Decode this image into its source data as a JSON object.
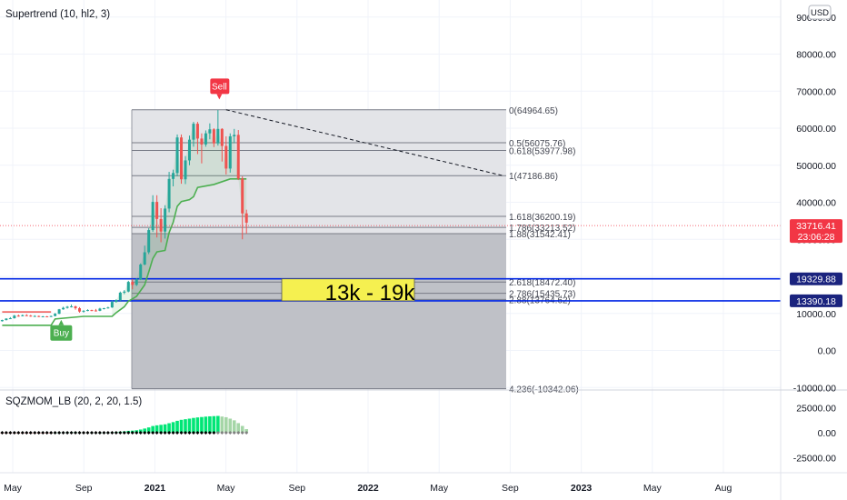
{
  "indicator_main": "Supertrend (10, hl2, 3)",
  "indicator_sub": "SQZMOM_LB (20, 2, 20, 1.5)",
  "currency_label": "USD",
  "price_axis": {
    "labels": [
      "90000.00",
      "80000.00",
      "70000.00",
      "60000.00",
      "50000.00",
      "40000.00",
      "30000.00",
      "20000.00",
      "10000.00",
      "0.00",
      "-10000.00"
    ]
  },
  "price_tags": [
    {
      "value": 33716.41,
      "label": "33716.41",
      "sublabel": "23:06:28",
      "color": "#f23645"
    },
    {
      "value": 19329.88,
      "label": "19329.88",
      "color": "#1a237e"
    },
    {
      "value": 13390.18,
      "label": "13390.18",
      "color": "#1a237e"
    }
  ],
  "sub_axis": {
    "labels": [
      "25000.00",
      "0.00",
      "-25000.00"
    ]
  },
  "time_axis": {
    "labels": [
      {
        "t": 0,
        "label": "May",
        "bold": false
      },
      {
        "t": 4,
        "label": "Sep",
        "bold": false
      },
      {
        "t": 8,
        "label": "2021",
        "bold": true
      },
      {
        "t": 12,
        "label": "May",
        "bold": false
      },
      {
        "t": 16,
        "label": "Sep",
        "bold": false
      },
      {
        "t": 20,
        "label": "2022",
        "bold": true
      },
      {
        "t": 24,
        "label": "May",
        "bold": false
      },
      {
        "t": 28,
        "label": "Sep",
        "bold": false
      },
      {
        "t": 32,
        "label": "2023",
        "bold": true
      },
      {
        "t": 36,
        "label": "May",
        "bold": false
      },
      {
        "t": 40,
        "label": "Aug",
        "bold": false
      }
    ]
  },
  "fib_levels": [
    {
      "value": 64964.65,
      "label": "0(64964.65)"
    },
    {
      "value": 56075.76,
      "label": "0.5(56075.76)"
    },
    {
      "value": 53977.98,
      "label": "0.618(53977.98)"
    },
    {
      "value": 47186.86,
      "label": "1(47186.86)"
    },
    {
      "value": 36200.19,
      "label": "1.618(36200.19)"
    },
    {
      "value": 33213.52,
      "label": "1.786(33213.52)"
    },
    {
      "value": 31542.41,
      "label": "1.88(31542.41)"
    },
    {
      "value": 18472.4,
      "label": "2.618(18472.40)"
    },
    {
      "value": 15435.73,
      "label": "2.786(15435.73)"
    },
    {
      "value": 13764.62,
      "label": "2.88(13764.62)"
    },
    {
      "value": -10342.06,
      "label": "4.236(-10342.06)"
    }
  ],
  "annotations": {
    "sell_label": "Sell",
    "buy_label": "Buy",
    "range_box_text": "13k - 19k"
  },
  "colors": {
    "bull": "#26a69a",
    "bear": "#ef5350",
    "supertrend_up": "#4caf50",
    "line_blue": "#0026e5",
    "fib_box": "#b2b5be",
    "range_box": "#f5f050"
  },
  "chart_data": {
    "type": "candlestick",
    "x_unit": "weeks from 2020 W1",
    "ylim": [
      -12000,
      95000
    ],
    "trendline": {
      "from": {
        "week": 55,
        "price": 64964.65
      },
      "to": {
        "week": 123,
        "price": 47186.86
      }
    },
    "candles": [
      [
        0,
        7900,
        8300,
        7800,
        8200
      ],
      [
        1,
        8200,
        8700,
        8100,
        8600
      ],
      [
        2,
        8600,
        9000,
        8500,
        8700
      ],
      [
        3,
        8700,
        9600,
        8600,
        9400
      ],
      [
        4,
        9400,
        9700,
        9100,
        9300
      ],
      [
        5,
        9300,
        9700,
        9200,
        9500
      ],
      [
        6,
        9500,
        9800,
        9300,
        9400
      ],
      [
        7,
        9400,
        9600,
        9100,
        9200
      ],
      [
        8,
        9200,
        9500,
        9100,
        9300
      ],
      [
        9,
        9300,
        9400,
        9000,
        9100
      ],
      [
        10,
        9100,
        9300,
        9000,
        9200
      ],
      [
        11,
        9200,
        9300,
        9000,
        9100
      ],
      [
        12,
        9100,
        9400,
        9000,
        9300
      ],
      [
        13,
        9300,
        10100,
        9200,
        9900
      ],
      [
        14,
        9900,
        11200,
        9800,
        11100
      ],
      [
        15,
        11100,
        11800,
        11000,
        11500
      ],
      [
        16,
        11500,
        12000,
        11300,
        11800
      ],
      [
        17,
        11800,
        12400,
        11600,
        11900
      ],
      [
        18,
        11900,
        12100,
        11000,
        11400
      ],
      [
        19,
        11400,
        11700,
        10200,
        10500
      ],
      [
        20,
        10500,
        10900,
        10200,
        10700
      ],
      [
        21,
        10700,
        11100,
        10600,
        10900
      ],
      [
        22,
        10900,
        11000,
        10600,
        10800
      ],
      [
        23,
        10800,
        11200,
        10500,
        10700
      ],
      [
        24,
        10700,
        11500,
        10600,
        11300
      ],
      [
        25,
        11300,
        11500,
        11100,
        11400
      ],
      [
        26,
        11400,
        11800,
        11300,
        11600
      ],
      [
        27,
        11600,
        13500,
        11500,
        13100
      ],
      [
        28,
        13100,
        13800,
        12900,
        13600
      ],
      [
        29,
        13600,
        15900,
        13400,
        15600
      ],
      [
        30,
        15600,
        16300,
        15200,
        15900
      ],
      [
        31,
        15900,
        18800,
        15700,
        18500
      ],
      [
        32,
        18500,
        19300,
        16500,
        17700
      ],
      [
        33,
        17700,
        19500,
        17400,
        19200
      ],
      [
        34,
        19200,
        23500,
        19000,
        23200
      ],
      [
        35,
        23200,
        28300,
        23000,
        26500
      ],
      [
        36,
        26500,
        33000,
        26000,
        32500
      ],
      [
        37,
        32500,
        41900,
        32000,
        40100
      ],
      [
        38,
        40100,
        41900,
        30500,
        35500
      ],
      [
        39,
        35500,
        38400,
        29200,
        32100
      ],
      [
        40,
        32100,
        39200,
        30200,
        38300
      ],
      [
        41,
        38300,
        48200,
        37300,
        46300
      ],
      [
        42,
        46300,
        48800,
        44300,
        47900
      ],
      [
        43,
        47900,
        58300,
        47000,
        57500
      ],
      [
        44,
        57500,
        58300,
        45000,
        46200
      ],
      [
        45,
        46200,
        52500,
        44900,
        51300
      ],
      [
        46,
        51300,
        58000,
        50000,
        56900
      ],
      [
        47,
        56900,
        61700,
        55000,
        61200
      ],
      [
        48,
        61200,
        61700,
        53000,
        57200
      ],
      [
        49,
        57200,
        58600,
        50500,
        55600
      ],
      [
        50,
        55600,
        59400,
        55000,
        58600
      ],
      [
        51,
        58600,
        61300,
        57000,
        59700
      ],
      [
        52,
        59700,
        60000,
        54900,
        55900
      ],
      [
        53,
        55900,
        64900,
        55300,
        59800
      ],
      [
        54,
        59800,
        60000,
        51000,
        55200
      ],
      [
        55,
        55200,
        57800,
        47500,
        49100
      ],
      [
        56,
        49100,
        58600,
        48000,
        57800
      ],
      [
        57,
        57800,
        59800,
        56000,
        58200
      ],
      [
        58,
        58200,
        59500,
        46000,
        46400
      ],
      [
        59,
        46400,
        47000,
        30000,
        37000
      ],
      [
        60,
        37000,
        38000,
        31500,
        34500
      ]
    ],
    "supertrend": [
      [
        0,
        6800
      ],
      [
        12,
        6800
      ],
      [
        13,
        8500
      ],
      [
        20,
        9200
      ],
      [
        27,
        9200
      ],
      [
        28,
        10200
      ],
      [
        30,
        11800
      ],
      [
        31,
        13300
      ],
      [
        33,
        14600
      ],
      [
        35,
        17700
      ],
      [
        36,
        21200
      ],
      [
        37,
        24800
      ],
      [
        38,
        26600
      ],
      [
        40,
        27000
      ],
      [
        41,
        31800
      ],
      [
        42,
        34600
      ],
      [
        43,
        38900
      ],
      [
        44,
        40200
      ],
      [
        46,
        40700
      ],
      [
        47,
        41500
      ],
      [
        48,
        44000
      ],
      [
        52,
        44800
      ],
      [
        56,
        46300
      ],
      [
        60,
        46300
      ]
    ],
    "sqzmom": [
      [
        0,
        -600
      ],
      [
        1,
        -500
      ],
      [
        2,
        -400
      ],
      [
        3,
        -300
      ],
      [
        4,
        -300
      ],
      [
        5,
        -200
      ],
      [
        6,
        -200
      ],
      [
        7,
        -200
      ],
      [
        8,
        -100
      ],
      [
        9,
        -100
      ],
      [
        10,
        -100
      ],
      [
        11,
        -100
      ],
      [
        12,
        -100
      ],
      [
        13,
        100
      ],
      [
        14,
        300
      ],
      [
        15,
        400
      ],
      [
        16,
        500
      ],
      [
        17,
        600
      ],
      [
        18,
        600
      ],
      [
        19,
        500
      ],
      [
        20,
        400
      ],
      [
        21,
        300
      ],
      [
        22,
        300
      ],
      [
        23,
        200
      ],
      [
        24,
        200
      ],
      [
        25,
        200
      ],
      [
        26,
        300
      ],
      [
        27,
        600
      ],
      [
        28,
        800
      ],
      [
        29,
        1100
      ],
      [
        30,
        1400
      ],
      [
        31,
        1900
      ],
      [
        32,
        2100
      ],
      [
        33,
        2500
      ],
      [
        34,
        3200
      ],
      [
        35,
        4200
      ],
      [
        36,
        5300
      ],
      [
        37,
        6700
      ],
      [
        38,
        7400
      ],
      [
        39,
        7900
      ],
      [
        40,
        8400
      ],
      [
        41,
        9500
      ],
      [
        42,
        10600
      ],
      [
        43,
        11900
      ],
      [
        44,
        12900
      ],
      [
        45,
        13500
      ],
      [
        46,
        14100
      ],
      [
        47,
        14800
      ],
      [
        48,
        15300
      ],
      [
        49,
        15700
      ],
      [
        50,
        16100
      ],
      [
        51,
        16400
      ],
      [
        52,
        16600
      ],
      [
        53,
        16800
      ],
      [
        54,
        16200
      ],
      [
        55,
        15500
      ],
      [
        56,
        14100
      ],
      [
        57,
        12400
      ],
      [
        58,
        9600
      ],
      [
        59,
        6800
      ],
      [
        60,
        3600
      ]
    ]
  }
}
